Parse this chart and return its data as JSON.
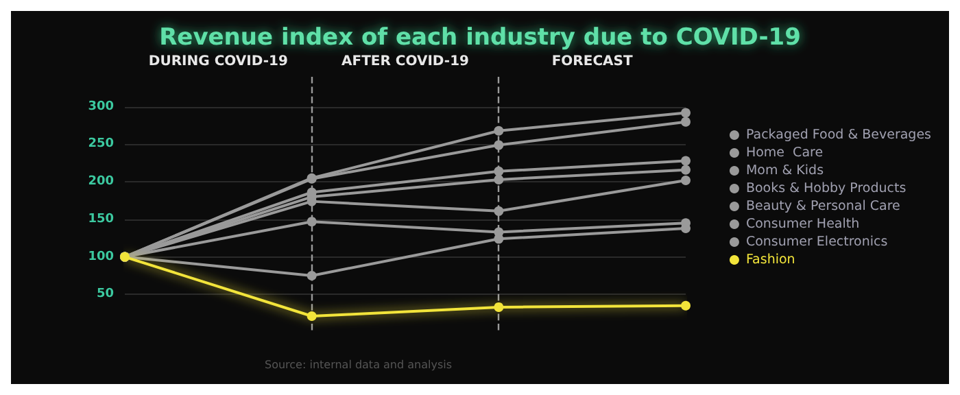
{
  "chart_data": {
    "type": "line",
    "title": "Revenue index of each industry due to COVID-19",
    "categories": [
      null,
      null,
      null,
      null
    ],
    "ylim": [
      0,
      340
    ],
    "yticks": [
      50,
      100,
      150,
      200,
      250,
      300
    ],
    "series": [
      {
        "name": "Packaged Food & Beverages",
        "color": "#9a9a9a",
        "values": [
          100,
          205,
          268,
          292
        ]
      },
      {
        "name": "Home  Care",
        "color": "#9a9a9a",
        "values": [
          100,
          204,
          249,
          280
        ]
      },
      {
        "name": "Mom & Kids",
        "color": "#9a9a9a",
        "values": [
          100,
          186,
          214,
          228
        ]
      },
      {
        "name": "Books & Hobby Products",
        "color": "#9a9a9a",
        "values": [
          100,
          180,
          203,
          216
        ]
      },
      {
        "name": "Beauty & Personal Care",
        "color": "#9a9a9a",
        "values": [
          100,
          174,
          161,
          202
        ]
      },
      {
        "name": "Consumer Health",
        "color": "#9a9a9a",
        "values": [
          100,
          147,
          133,
          145
        ]
      },
      {
        "name": "Consumer Electronics",
        "color": "#9a9a9a",
        "values": [
          100,
          75,
          124,
          138
        ]
      },
      {
        "name": "Fashion",
        "color": "#f2e43a",
        "values": [
          100,
          21,
          33,
          35
        ]
      }
    ],
    "annotations": [
      "DURING COVID-19",
      "AFTER COVID-19",
      "FORECAST",
      "Source: internal data and analysis"
    ],
    "grid": true,
    "legend": "right",
    "marker": "circle",
    "line_style": "solid"
  }
}
